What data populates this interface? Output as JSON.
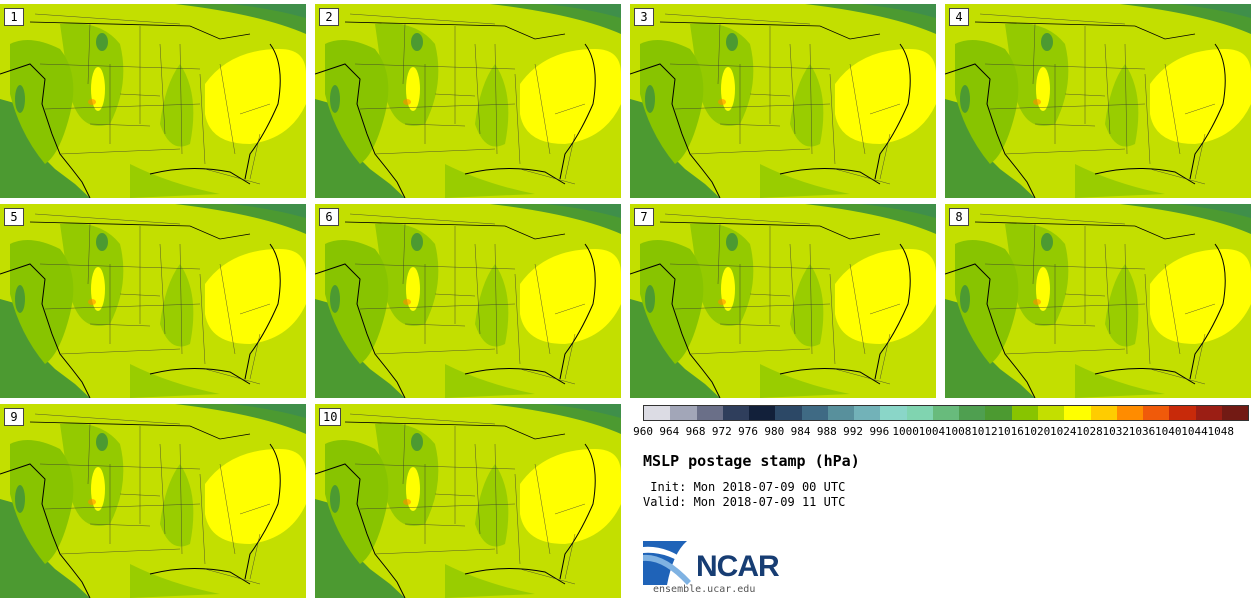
{
  "stamps": [
    {
      "label": "1"
    },
    {
      "label": "2"
    },
    {
      "label": "3"
    },
    {
      "label": "4"
    },
    {
      "label": "5"
    },
    {
      "label": "6"
    },
    {
      "label": "7"
    },
    {
      "label": "8"
    },
    {
      "label": "9"
    },
    {
      "label": "10"
    }
  ],
  "colorbar": {
    "colors": [
      "#dcdce4",
      "#a2a6b8",
      "#6a6f88",
      "#2f3e5c",
      "#12203a",
      "#2c4866",
      "#3f6a84",
      "#58909c",
      "#72b2b8",
      "#8ad6c8",
      "#80d4b0",
      "#68bb7c",
      "#4f9f50",
      "#4c9a31",
      "#88c400",
      "#c3df00",
      "#ffff00",
      "#ffcc00",
      "#ff8c00",
      "#f05a0a",
      "#c82a0a",
      "#9b1e14",
      "#721a14"
    ],
    "ticks": [
      "960",
      "964",
      "968",
      "972",
      "976",
      "980",
      "984",
      "988",
      "992",
      "996",
      "1000",
      "1004",
      "1008",
      "1012",
      "1016",
      "1020",
      "1024",
      "1028",
      "1032",
      "1036",
      "1040",
      "1044",
      "1048"
    ]
  },
  "info": {
    "title": "MSLP postage stamp (hPa)",
    "init": " Init: Mon 2018-07-09 00 UTC",
    "valid": "Valid: Mon 2018-07-09 11 UTC"
  },
  "logo": {
    "text": "NCAR",
    "site": "ensemble.ucar.edu"
  }
}
